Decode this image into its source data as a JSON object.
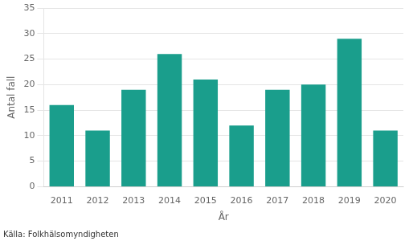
{
  "chart_data": {
    "type": "bar",
    "xlabel": "År",
    "ylabel": "Antal fall",
    "annotations": [
      "Källa: Folkhälsomyndigheten"
    ],
    "categories": [
      "2011",
      "2012",
      "2013",
      "2014",
      "2015",
      "2016",
      "2017",
      "2018",
      "2019",
      "2020"
    ],
    "values": [
      16,
      11,
      19,
      26,
      21,
      12,
      19,
      20,
      29,
      11
    ],
    "color": "#1a9e8c",
    "ylim": [
      0,
      35
    ],
    "yticks": [
      0,
      5,
      10,
      15,
      20,
      25,
      30,
      35
    ],
    "grid": true
  }
}
